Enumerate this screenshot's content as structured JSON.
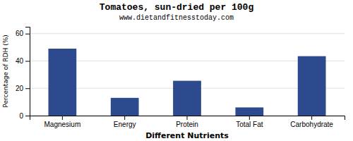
{
  "chart_data": {
    "type": "bar",
    "title": "Tomatoes, sun-dried per 100g",
    "subtitle": "www.dietandfitnesstoday.com",
    "xlabel": "Different Nutrients",
    "ylabel": "Percentage of RDH (%)",
    "categories": [
      "Magnesium",
      "Energy",
      "Protein",
      "Total Fat",
      "Carbohydrate"
    ],
    "values": [
      49,
      13,
      25.5,
      6,
      43.5
    ],
    "color": "#2e4a8e",
    "ylim": [
      0,
      65
    ],
    "yticks": [
      0,
      20,
      40,
      60
    ],
    "grid": true
  }
}
